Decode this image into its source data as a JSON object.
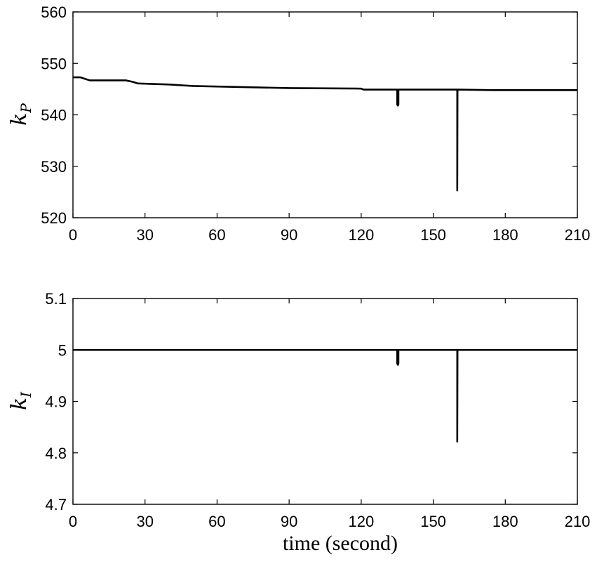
{
  "chart_data": [
    {
      "type": "line",
      "ylabel_main": "k",
      "ylabel_sub": "P",
      "xlabel": "",
      "xlim": [
        0,
        210
      ],
      "ylim": [
        520,
        560
      ],
      "xticks": [
        "0",
        "30",
        "60",
        "90",
        "120",
        "150",
        "180",
        "210"
      ],
      "yticks": [
        "520",
        "530",
        "540",
        "550",
        "560"
      ],
      "grid": false,
      "series": [
        {
          "x": [
            0,
            3,
            5,
            7,
            22,
            25,
            27,
            40,
            50,
            70,
            90,
            120,
            121,
            135,
            135,
            135.3,
            135.5,
            135.5,
            136,
            159.9,
            160,
            160,
            160.1,
            175,
            210
          ],
          "y": [
            547.3,
            547.3,
            547.0,
            546.7,
            546.7,
            546.4,
            546.1,
            545.9,
            545.6,
            545.4,
            545.2,
            545.1,
            544.9,
            544.9,
            542.0,
            541.8,
            542.0,
            544.9,
            544.9,
            544.9,
            544.9,
            525.3,
            544.9,
            544.8,
            544.8
          ]
        }
      ]
    },
    {
      "type": "line",
      "ylabel_main": "k",
      "ylabel_sub": "I",
      "xlabel": "time (second)",
      "xlim": [
        0,
        210
      ],
      "ylim": [
        4.7,
        5.1
      ],
      "xticks": [
        "0",
        "30",
        "60",
        "90",
        "120",
        "150",
        "180",
        "210"
      ],
      "yticks": [
        "4.7",
        "4.8",
        "4.9",
        "5",
        "5.1"
      ],
      "grid": false,
      "series": [
        {
          "x": [
            0,
            135,
            135,
            135.3,
            135.5,
            135.5,
            160,
            160,
            160.1,
            210
          ],
          "y": [
            5.0,
            5.0,
            4.974,
            4.971,
            4.974,
            5.0,
            5.0,
            4.822,
            5.0,
            5.0
          ]
        }
      ]
    }
  ]
}
